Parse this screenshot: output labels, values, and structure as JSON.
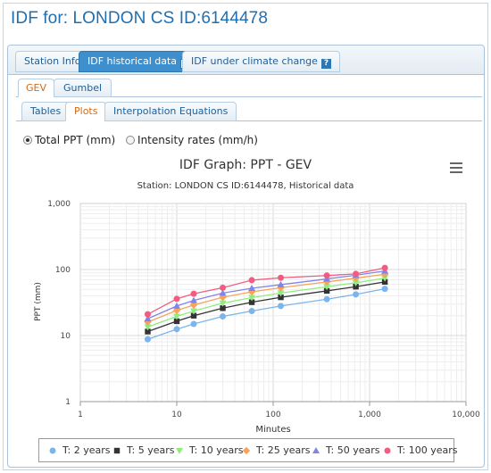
{
  "page": {
    "title": "IDF for: LONDON CS ID:6144478"
  },
  "tabs": [
    {
      "label": "Station Info"
    },
    {
      "label": "IDF historical data"
    },
    {
      "label": "IDF under climate change"
    }
  ],
  "dist_tabs": [
    {
      "label": "GEV"
    },
    {
      "label": "Gumbel"
    }
  ],
  "view_tabs": [
    {
      "label": "Tables"
    },
    {
      "label": "Plots"
    },
    {
      "label": "Interpolation Equations"
    }
  ],
  "radio": {
    "total_label": "Total PPT (mm)",
    "intensity_label": "Intensity rates (mm/h)",
    "selected": "total"
  },
  "icons": {
    "help": "?",
    "chart_menu": "hamburger-menu-icon"
  },
  "chart_data": {
    "type": "line",
    "title": "IDF Graph: PPT - GEV",
    "subtitle": "Station: LONDON CS ID:6144478, Historical data",
    "xlabel": "Minutes",
    "ylabel": "PPT (mm)",
    "x_scale": "log",
    "y_scale": "log",
    "xlim": [
      1,
      10000
    ],
    "ylim": [
      1,
      1000
    ],
    "x_tick_labels": [
      "1",
      "10",
      "100",
      "1,000",
      "10,000"
    ],
    "y_tick_labels": [
      "1",
      "10",
      "100",
      "1,000"
    ],
    "x_ticks": [
      1,
      10,
      100,
      1000,
      10000
    ],
    "y_ticks": [
      1,
      10,
      100,
      1000
    ],
    "grid": true,
    "legend_position": "bottom",
    "x": [
      5,
      10,
      15,
      30,
      60,
      120,
      360,
      720,
      1440
    ],
    "series": [
      {
        "name": "T: 2 years",
        "color": "#7cb5ec",
        "marker": "circle",
        "values": [
          8.8,
          12.5,
          15,
          19.5,
          23.5,
          28,
          35.5,
          42,
          51
        ]
      },
      {
        "name": "T: 5 years",
        "color": "#333333",
        "marker": "square",
        "values": [
          11.5,
          16.5,
          20,
          26,
          32,
          38,
          47.5,
          55,
          65
        ]
      },
      {
        "name": "T: 10 years",
        "color": "#90ed7d",
        "marker": "triangle-down",
        "values": [
          13.5,
          19.5,
          23.5,
          31,
          37.5,
          44,
          55,
          63,
          74
        ]
      },
      {
        "name": "T: 25 years",
        "color": "#f7a35c",
        "marker": "diamond",
        "values": [
          16,
          24,
          29,
          38,
          46,
          53,
          65,
          74,
          85
        ]
      },
      {
        "name": "T: 50 years",
        "color": "#8085e9",
        "marker": "triangle",
        "values": [
          18,
          28,
          34,
          44,
          52,
          59,
          72,
          82,
          95
        ]
      },
      {
        "name": "T: 100 years",
        "color": "#f15c80",
        "marker": "circle",
        "values": [
          21,
          36,
          43,
          53,
          69,
          75,
          81,
          86,
          106
        ]
      }
    ]
  }
}
